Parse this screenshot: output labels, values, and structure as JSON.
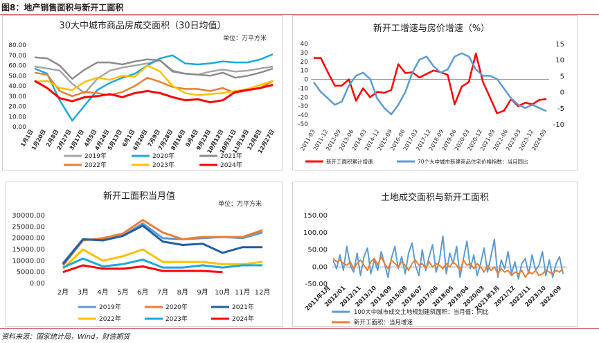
{
  "figure_title": "图8：地产销售面积与新开工面积",
  "source": "资料来源：国家统计局，Wind，财信期货",
  "chart_data": [
    {
      "type": "line",
      "title": "30大中城市商品房成交面积（30日均值）",
      "unit": "单位：万平方米",
      "ylim": [
        0,
        80
      ],
      "yticks": [
        "0.00",
        "10.00",
        "20.00",
        "30.00",
        "40.00",
        "50.00",
        "60.00",
        "70.00",
        "80.00"
      ],
      "x_labels": [
        "1月1日",
        "1月20日",
        "2月8日",
        "2月27日",
        "3月17日",
        "4月5日",
        "4月24日",
        "5月13日",
        "6月1日",
        "6月20日",
        "7月9日",
        "7月28日",
        "8月16日",
        "9月4日",
        "9月23日",
        "10月12日",
        "10月31日",
        "11月19日",
        "12月8日",
        "12月27日"
      ],
      "legend": "bottom",
      "series": [
        {
          "name": "2019年",
          "color": "#a6a6a6",
          "values": [
            59,
            57,
            55,
            42,
            33,
            47,
            55,
            58,
            60,
            62,
            65,
            55,
            52,
            51,
            54,
            56,
            54,
            55,
            57,
            59
          ]
        },
        {
          "name": "2020年",
          "color": "#19a9e0",
          "values": [
            57,
            52,
            26,
            6,
            21,
            36,
            43,
            48,
            52,
            60,
            67,
            70,
            62,
            61,
            62,
            64,
            63,
            63,
            66,
            71
          ]
        },
        {
          "name": "2021年",
          "color": "#8c8c8c",
          "values": [
            68,
            67,
            60,
            47,
            56,
            63,
            63,
            61,
            64,
            66,
            65,
            54,
            52,
            51,
            50,
            53,
            48,
            50,
            53,
            57
          ]
        },
        {
          "name": "2022年",
          "color": "#ed7d31",
          "values": [
            53,
            51,
            35,
            30,
            34,
            33,
            31,
            34,
            40,
            48,
            44,
            39,
            37,
            37,
            35,
            38,
            33,
            36,
            38,
            45
          ]
        },
        {
          "name": "2023年",
          "color": "#ffc000",
          "values": [
            44,
            45,
            38,
            36,
            44,
            48,
            46,
            50,
            49,
            60,
            54,
            40,
            33,
            31,
            32,
            33,
            35,
            37,
            41,
            45
          ]
        },
        {
          "name": "2024年",
          "color": "#ff0000",
          "values": [
            45,
            38,
            28,
            25,
            29,
            30,
            32,
            29,
            33,
            35,
            33,
            29,
            26,
            27,
            24,
            26,
            34,
            36,
            38,
            41
          ]
        }
      ]
    },
    {
      "type": "line",
      "title": "新开工增速与房价增速（%）",
      "ylim_left": [
        -50,
        40
      ],
      "ylim_right": [
        -10,
        15
      ],
      "yticks_left": [
        "-50",
        "-40",
        "-30",
        "-20",
        "-10",
        "0",
        "10",
        "20",
        "30",
        "40"
      ],
      "yticks_right": [
        "-10",
        "-5",
        "0",
        "5",
        "10",
        "15"
      ],
      "x_labels": [
        "2011-03",
        "2011-12",
        "2012-09",
        "2013-06",
        "2014-03",
        "2014-12",
        "2015-09",
        "2016-06",
        "2017-03",
        "2017-12",
        "2018-09",
        "2019-06",
        "2020-03",
        "2020-12",
        "2021-09",
        "2022-06",
        "2023-03",
        "2023-12",
        "2024-09"
      ],
      "legend": "bottom",
      "series": [
        {
          "name": "新开工面积累计增速",
          "color": "#ff0000",
          "axis": "left",
          "values": [
            24,
            24,
            8,
            -7,
            -7,
            0,
            -24,
            -10,
            -20,
            -14,
            -15,
            -12,
            17,
            7,
            8,
            2,
            6,
            10,
            8,
            5,
            -28,
            -8,
            -3,
            29,
            -3,
            -20,
            -38,
            -35,
            -22,
            -30,
            -26,
            -28,
            -23,
            -22
          ]
        },
        {
          "name": "70个大中城市新建商品住宅价格指数：当月同比",
          "color": "#5b9bd5",
          "axis": "right",
          "values": [
            3,
            0,
            -2,
            -4,
            -3,
            2,
            5,
            6,
            4,
            -2,
            -5,
            -7,
            -4,
            0,
            6,
            10,
            11,
            8,
            6,
            7,
            11,
            12,
            11,
            7,
            5,
            5,
            4,
            1,
            -2,
            -4,
            -5,
            -4,
            -5,
            -6
          ]
        }
      ]
    },
    {
      "type": "line",
      "title": "新开工面积当月值",
      "unit": "单位：万平方米",
      "ylim": [
        0,
        30000
      ],
      "yticks": [
        "0.00",
        "5000.00",
        "10000.00",
        "15000.00",
        "20000.00",
        "25000.00",
        "30000.00"
      ],
      "categories": [
        "2月",
        "3月",
        "4月",
        "5月",
        "6月",
        "7月",
        "8月",
        "9月",
        "10月",
        "11月",
        "12月"
      ],
      "legend": "bottom",
      "series": [
        {
          "name": "2019年",
          "color": "#5b9bd5",
          "values": [
            9000,
            19500,
            19000,
            21000,
            26500,
            20000,
            19500,
            20000,
            20500,
            20000,
            22500
          ]
        },
        {
          "name": "2020年",
          "color": "#ed7d31",
          "values": [
            8000,
            19000,
            20000,
            22000,
            28000,
            22500,
            19500,
            20500,
            20500,
            20500,
            23500
          ]
        },
        {
          "name": "2021年",
          "color": "#1f5fa5",
          "values": [
            8500,
            19500,
            19000,
            21000,
            25500,
            18500,
            17000,
            17500,
            13500,
            16000,
            16000
          ]
        },
        {
          "name": "2022年",
          "color": "#ffc000",
          "values": [
            6500,
            15000,
            10000,
            12000,
            15000,
            9500,
            9500,
            9500,
            8500,
            8500,
            9500
          ]
        },
        {
          "name": "2023年",
          "color": "#19a9e0",
          "values": [
            7000,
            11000,
            7500,
            8500,
            10500,
            7000,
            7000,
            8000,
            7000,
            8000,
            8000
          ]
        },
        {
          "name": "2024年",
          "color": "#ff0000",
          "values": [
            5000,
            8000,
            6500,
            6500,
            7500,
            5500,
            5500,
            5500,
            5000,
            null,
            null
          ]
        }
      ]
    },
    {
      "type": "line",
      "title": "土地成交面积与新开工面积",
      "ylim": [
        -50,
        150
      ],
      "yticks": [
        "-50.00",
        "0.00",
        "50.00",
        "100.00",
        "150.00"
      ],
      "x_labels": [
        "2011年1月",
        "2012/01",
        "2012/11",
        "2013/10",
        "2014/09",
        "2015/08",
        "2016/07",
        "2017/06",
        "2018/05",
        "2019/04",
        "2020/03",
        "2021年1月",
        "2021/12",
        "2022/11",
        "2023/10",
        "2024/09"
      ],
      "legend": "bottom",
      "series": [
        {
          "name": "100大中城市成交土地规划建筑面积：当月值：同比",
          "color": "#5b9bd5",
          "values": [
            20,
            -5,
            35,
            -10,
            60,
            5,
            -15,
            40,
            -25,
            30,
            55,
            -20,
            20,
            -10,
            45,
            10,
            -30,
            25,
            60,
            -5,
            30,
            -20,
            40,
            70,
            5,
            -25,
            50,
            -10,
            30,
            65,
            -15,
            20,
            90,
            -20,
            40,
            10,
            60,
            -30,
            25,
            75,
            -5,
            35,
            -25,
            10,
            55,
            -15,
            30,
            80,
            -30,
            20,
            -5,
            45,
            -20,
            15,
            -35,
            10,
            25,
            -20,
            35,
            -10,
            5,
            45,
            -25,
            20,
            -30,
            10,
            30,
            -20
          ]
        },
        {
          "name": "新开工面积：当月增速",
          "color": "#ed7d31",
          "values": [
            25,
            15,
            20,
            10,
            5,
            15,
            -5,
            10,
            20,
            5,
            -10,
            15,
            25,
            5,
            30,
            10,
            -5,
            20,
            10,
            0,
            15,
            5,
            -10,
            10,
            20,
            5,
            10,
            -5,
            15,
            0,
            10,
            5,
            -5,
            10,
            0,
            15,
            5,
            -10,
            20,
            5,
            10,
            -5,
            10,
            0,
            -15,
            5,
            -10,
            0,
            -20,
            -5,
            -15,
            -10,
            -25,
            -15,
            -20,
            -10,
            -30,
            -15,
            -20,
            -10,
            -25,
            -20,
            -10,
            -15,
            -20,
            -10,
            -15,
            -5
          ]
        }
      ]
    }
  ]
}
